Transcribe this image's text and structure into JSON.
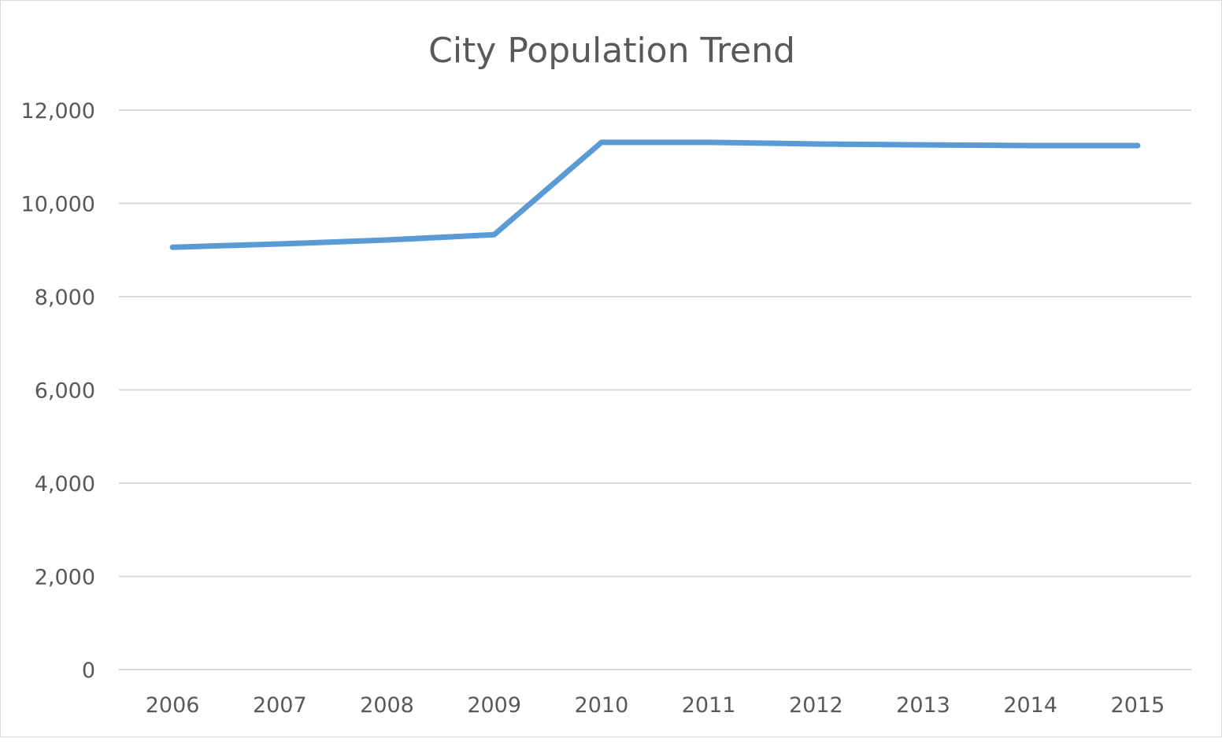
{
  "chart_data": {
    "type": "line",
    "title": "City Population Trend",
    "xlabel": "",
    "ylabel": "",
    "categories": [
      "2006",
      "2007",
      "2008",
      "2009",
      "2010",
      "2011",
      "2012",
      "2013",
      "2014",
      "2015"
    ],
    "series": [
      {
        "values": [
          9060,
          9130,
          9215,
          9330,
          11310,
          11310,
          11275,
          11255,
          11240,
          11240
        ],
        "color": "#5b9bd5"
      }
    ],
    "ylim": [
      0,
      12000
    ],
    "yticks": [
      0,
      2000,
      4000,
      6000,
      8000,
      10000,
      12000
    ],
    "ytick_labels": [
      "0",
      "2,000",
      "4,000",
      "6,000",
      "8,000",
      "10,000",
      "12,000"
    ],
    "grid": true,
    "gridline_color": "#d9d9d9",
    "legend": "none"
  }
}
